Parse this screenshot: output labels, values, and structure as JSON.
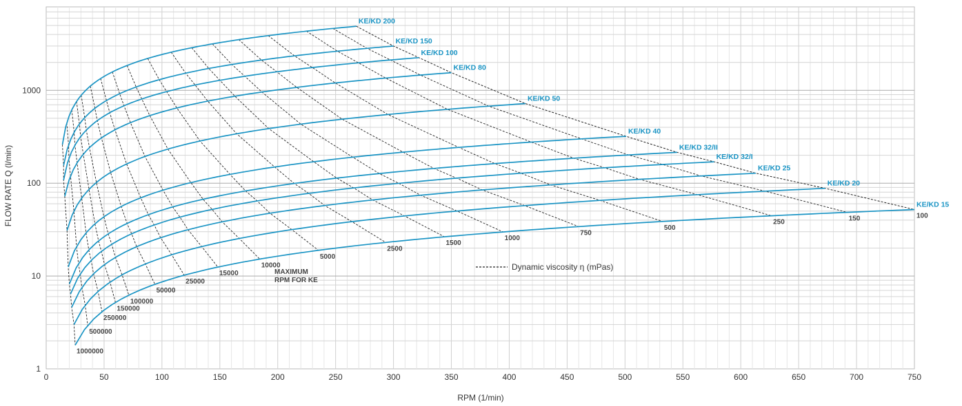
{
  "chart_data": {
    "type": "line",
    "xlabel": "RPM (1/min)",
    "ylabel": "FLOW RATE Q (l/min)",
    "xlim": [
      0,
      750
    ],
    "ylim": [
      1,
      7000
    ],
    "yscale": "log",
    "x_ticks": [
      0,
      50,
      100,
      150,
      200,
      250,
      300,
      350,
      400,
      450,
      500,
      550,
      600,
      650,
      700,
      750
    ],
    "y_ticks": [
      1,
      10,
      100,
      1000
    ],
    "grid": true,
    "colors": {
      "series": "#1a94c4",
      "label": "#1a94c4",
      "viscosity": "#222222",
      "grid": "#d4d4d4",
      "major_grid": "#aaaaaa"
    },
    "series": [
      {
        "name": "KE/KD 200",
        "x_start": 14,
        "x_end": 268,
        "y_start": 260,
        "y_end": 4900
      },
      {
        "name": "KE/KD 150",
        "x_start": 15,
        "x_end": 300,
        "y_start": 155,
        "y_end": 3000
      },
      {
        "name": "KE/KD 100",
        "x_start": 15,
        "x_end": 322,
        "y_start": 108,
        "y_end": 2250
      },
      {
        "name": "KE/KD 80",
        "x_start": 16,
        "x_end": 350,
        "y_start": 72,
        "y_end": 1550
      },
      {
        "name": "KE/KD 50",
        "x_start": 18,
        "x_end": 414,
        "y_start": 31,
        "y_end": 720
      },
      {
        "name": "KE/KD 40",
        "x_start": 19,
        "x_end": 501,
        "y_start": 12.5,
        "y_end": 320
      },
      {
        "name": "KE/KD 32/II",
        "x_start": 20,
        "x_end": 545,
        "y_start": 8.2,
        "y_end": 215
      },
      {
        "name": "KE/KD 32/I",
        "x_start": 21,
        "x_end": 577,
        "y_start": 6.4,
        "y_end": 170
      },
      {
        "name": "KE/KD 25",
        "x_start": 22,
        "x_end": 613,
        "y_start": 4.6,
        "y_end": 128
      },
      {
        "name": "KE/KD 20",
        "x_start": 24,
        "x_end": 673,
        "y_start": 3.0,
        "y_end": 88
      },
      {
        "name": "KE/KD 15",
        "x_start": 25,
        "x_end": 750,
        "y_start": 1.8,
        "y_end": 52
      }
    ],
    "viscosity_labels": [
      "1000000",
      "500000",
      "250000",
      "150000",
      "100000",
      "50000",
      "25000",
      "15000",
      "10000",
      "5000",
      "2500",
      "1500",
      "1000",
      "750",
      "500",
      "250",
      "150",
      "100"
    ],
    "annotations": [
      "MAXIMUM",
      "RPM FOR KE"
    ],
    "legend": {
      "label": "Dynamic viscosity η (mPas)",
      "position": "lower-right"
    }
  }
}
